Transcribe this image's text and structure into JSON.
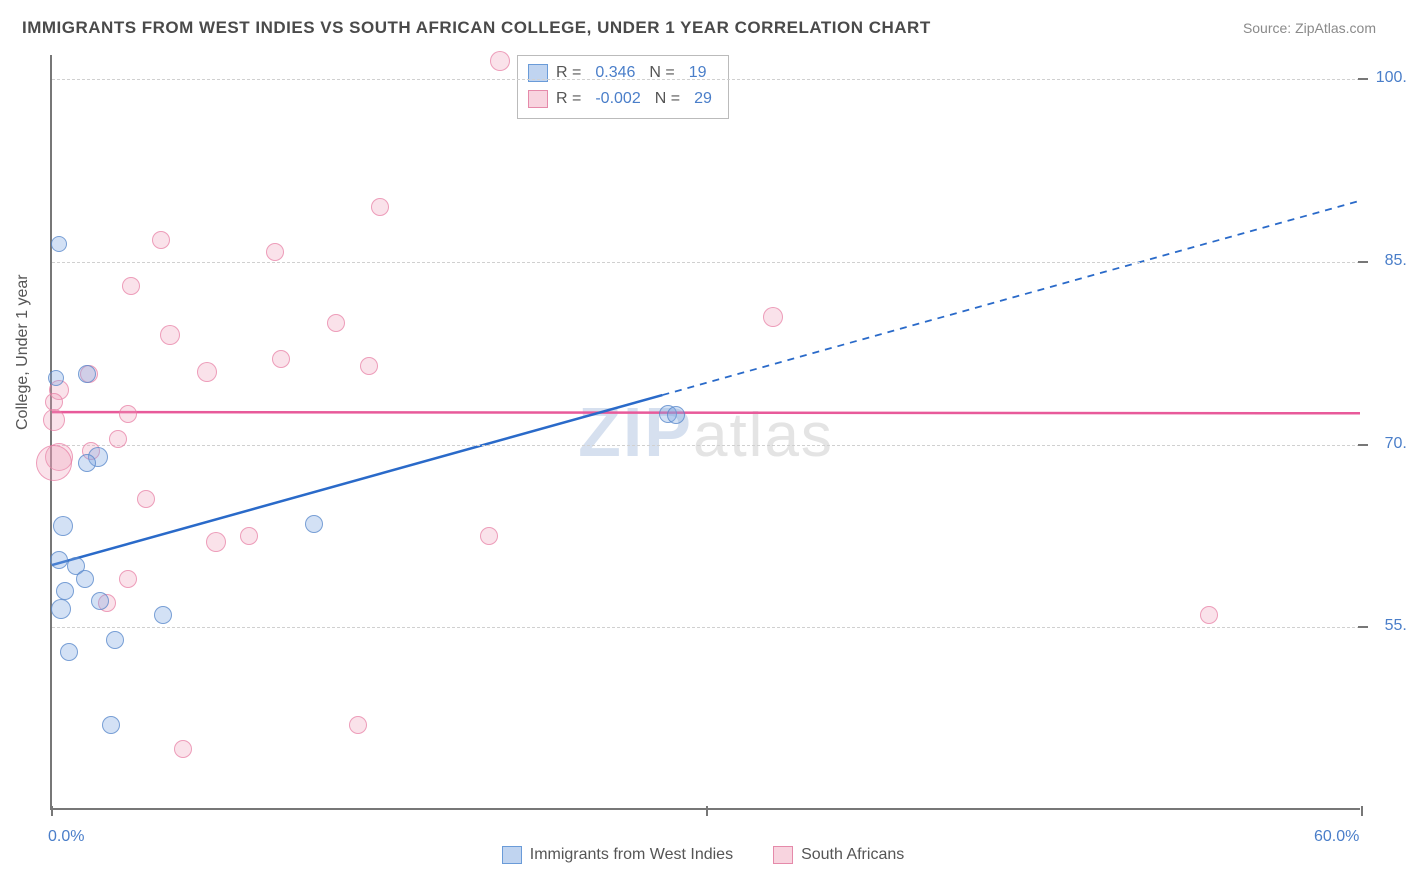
{
  "title": "IMMIGRANTS FROM WEST INDIES VS SOUTH AFRICAN COLLEGE, UNDER 1 YEAR CORRELATION CHART",
  "source": "Source: ZipAtlas.com",
  "watermark_z": "ZIP",
  "watermark_rest": "atlas",
  "chart": {
    "type": "scatter",
    "y_axis_title": "College, Under 1 year",
    "x_min": 0,
    "x_max": 60,
    "y_min": 40,
    "y_max": 102,
    "x_ticks": [
      0,
      30,
      60
    ],
    "x_tick_labels": [
      "0.0%",
      "",
      "60.0%"
    ],
    "y_ticks": [
      55,
      70,
      85,
      100
    ],
    "y_tick_labels": [
      "55.0%",
      "70.0%",
      "85.0%",
      "100.0%"
    ],
    "grid_color": "#d0d0d0",
    "background_color": "#ffffff",
    "label_color": "#4a7ec9",
    "title_color": "#4a4a4a",
    "axis_color": "#777777"
  },
  "series": {
    "blue": {
      "label": "Immigrants from West Indies",
      "R": "0.346",
      "N": "19",
      "fill": "rgba(130,170,225,0.35)",
      "stroke": "#5a8acb",
      "trend_color": "#2a6ac9",
      "trend_solid_end_x": 28,
      "trend": {
        "y_at_x0": 60,
        "y_at_x60": 90
      },
      "points": [
        {
          "x": 0.3,
          "y": 86.5,
          "r": 8
        },
        {
          "x": 1.6,
          "y": 75.8,
          "r": 9
        },
        {
          "x": 0.2,
          "y": 75.5,
          "r": 8
        },
        {
          "x": 28.2,
          "y": 72.5,
          "r": 9
        },
        {
          "x": 28.6,
          "y": 72.4,
          "r": 9
        },
        {
          "x": 2.1,
          "y": 69.0,
          "r": 10
        },
        {
          "x": 1.6,
          "y": 68.5,
          "r": 9
        },
        {
          "x": 12.0,
          "y": 63.5,
          "r": 9
        },
        {
          "x": 0.5,
          "y": 63.3,
          "r": 10
        },
        {
          "x": 0.3,
          "y": 60.5,
          "r": 9
        },
        {
          "x": 1.1,
          "y": 60.0,
          "r": 9
        },
        {
          "x": 1.5,
          "y": 59.0,
          "r": 9
        },
        {
          "x": 0.6,
          "y": 58.0,
          "r": 9
        },
        {
          "x": 2.2,
          "y": 57.2,
          "r": 9
        },
        {
          "x": 0.4,
          "y": 56.5,
          "r": 10
        },
        {
          "x": 5.1,
          "y": 56.0,
          "r": 9
        },
        {
          "x": 2.9,
          "y": 54.0,
          "r": 9
        },
        {
          "x": 0.8,
          "y": 53.0,
          "r": 9
        },
        {
          "x": 2.7,
          "y": 47.0,
          "r": 9
        }
      ]
    },
    "pink": {
      "label": "South Africans",
      "R": "-0.002",
      "N": "29",
      "fill": "rgba(240,160,185,0.3)",
      "stroke": "#e07aa0",
      "trend_color": "#e85a9a",
      "trend": {
        "y_at_x0": 72.6,
        "y_at_x60": 72.5
      },
      "points": [
        {
          "x": 20.5,
          "y": 101.5,
          "r": 10
        },
        {
          "x": 15.0,
          "y": 89.5,
          "r": 9
        },
        {
          "x": 5.0,
          "y": 86.8,
          "r": 9
        },
        {
          "x": 10.2,
          "y": 85.8,
          "r": 9
        },
        {
          "x": 3.6,
          "y": 83.0,
          "r": 9
        },
        {
          "x": 33.0,
          "y": 80.5,
          "r": 10
        },
        {
          "x": 13.0,
          "y": 80.0,
          "r": 9
        },
        {
          "x": 5.4,
          "y": 79.0,
          "r": 10
        },
        {
          "x": 10.5,
          "y": 77.0,
          "r": 9
        },
        {
          "x": 14.5,
          "y": 76.5,
          "r": 9
        },
        {
          "x": 7.1,
          "y": 76.0,
          "r": 10
        },
        {
          "x": 1.7,
          "y": 75.8,
          "r": 9
        },
        {
          "x": 0.3,
          "y": 74.5,
          "r": 10
        },
        {
          "x": 0.1,
          "y": 73.5,
          "r": 9
        },
        {
          "x": 3.5,
          "y": 72.5,
          "r": 9
        },
        {
          "x": 0.1,
          "y": 72.0,
          "r": 11
        },
        {
          "x": 3.0,
          "y": 70.5,
          "r": 9
        },
        {
          "x": 0.3,
          "y": 69.0,
          "r": 14
        },
        {
          "x": 1.8,
          "y": 69.5,
          "r": 9
        },
        {
          "x": 0.1,
          "y": 68.5,
          "r": 18
        },
        {
          "x": 4.3,
          "y": 65.5,
          "r": 9
        },
        {
          "x": 9.0,
          "y": 62.5,
          "r": 9
        },
        {
          "x": 20.0,
          "y": 62.5,
          "r": 9
        },
        {
          "x": 7.5,
          "y": 62.0,
          "r": 10
        },
        {
          "x": 3.5,
          "y": 59.0,
          "r": 9
        },
        {
          "x": 2.5,
          "y": 57.0,
          "r": 9
        },
        {
          "x": 53.0,
          "y": 56.0,
          "r": 9
        },
        {
          "x": 14.0,
          "y": 47.0,
          "r": 9
        },
        {
          "x": 6.0,
          "y": 45.0,
          "r": 9
        }
      ]
    }
  },
  "legend_box_labels": {
    "R": "R =",
    "N": "N ="
  }
}
